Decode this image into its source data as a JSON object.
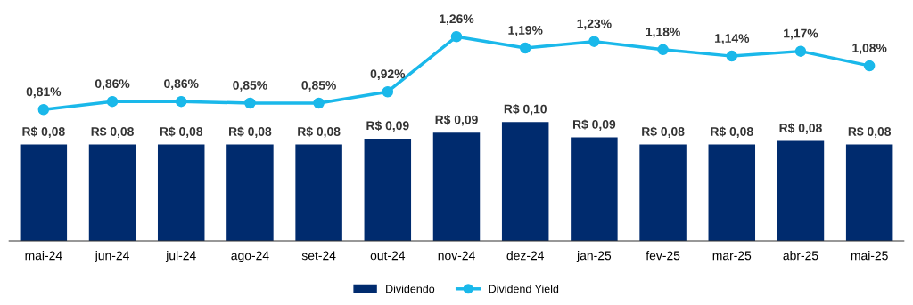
{
  "chart_data": [
    {
      "type": "bar",
      "categories": [
        "mai-24",
        "jun-24",
        "jul-24",
        "ago-24",
        "set-24",
        "out-24",
        "nov-24",
        "dez-24",
        "jan-25",
        "fev-25",
        "mar-25",
        "abr-25",
        "mai-25"
      ],
      "series": [
        {
          "name": "Dividendo",
          "color": "#002b6e",
          "values": [
            0.081,
            0.081,
            0.081,
            0.081,
            0.081,
            0.086,
            0.091,
            0.1,
            0.087,
            0.081,
            0.081,
            0.084,
            0.081
          ],
          "value_labels": [
            "R$ 0,08",
            "R$ 0,08",
            "R$ 0,08",
            "R$ 0,08",
            "R$ 0,08",
            "R$ 0,09",
            "R$ 0,09",
            "R$ 0,10",
            "R$ 0,09",
            "R$ 0,08",
            "R$ 0,08",
            "R$ 0,08",
            "R$ 0,08"
          ]
        }
      ],
      "tick_labels": "x",
      "legend": "bottom"
    },
    {
      "type": "line",
      "categories": [
        "mai-24",
        "jun-24",
        "jul-24",
        "ago-24",
        "set-24",
        "out-24",
        "nov-24",
        "dez-24",
        "jan-25",
        "fev-25",
        "mar-25",
        "abr-25",
        "mai-25"
      ],
      "series": [
        {
          "name": "Dividend Yield",
          "color": "#1ab8ea",
          "values": [
            0.81,
            0.86,
            0.86,
            0.85,
            0.85,
            0.92,
            1.26,
            1.19,
            1.23,
            1.18,
            1.14,
            1.17,
            1.08
          ],
          "value_labels": [
            "0,81%",
            "0,86%",
            "0,86%",
            "0,85%",
            "0,85%",
            "0,92%",
            "1,26%",
            "1,19%",
            "1,23%",
            "1,18%",
            "1,14%",
            "1,17%",
            "1,08%"
          ]
        }
      ],
      "marker": "circle",
      "tick_labels": false,
      "legend": "bottom"
    }
  ]
}
